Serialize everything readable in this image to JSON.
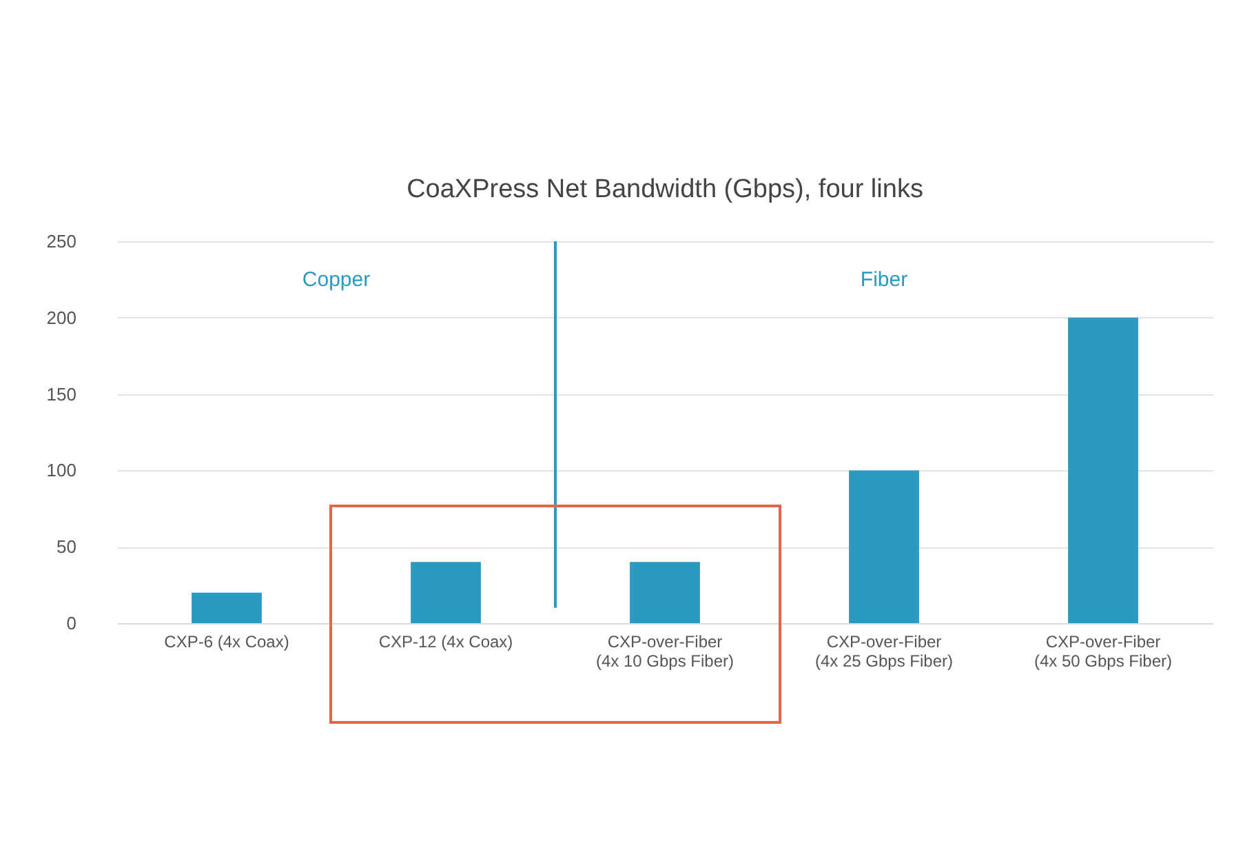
{
  "chart_data": {
    "type": "bar",
    "title": "CoaXPress Net Bandwidth (Gbps), four links",
    "categories": [
      "CXP-6 (4x Coax)",
      "CXP-12 (4x Coax)",
      "CXP-over-Fiber\n(4x 10 Gbps Fiber)",
      "CXP-over-Fiber\n(4x 25 Gbps Fiber)",
      "CXP-over-Fiber\n(4x 50 Gbps Fiber)"
    ],
    "values": [
      20,
      40,
      40,
      100,
      200
    ],
    "color": "#2a9ac2",
    "ylim": [
      0,
      250
    ],
    "yticks": [
      0,
      50,
      100,
      150,
      200,
      250
    ],
    "grid": "y",
    "annotations": [
      "Copper",
      "Fiber"
    ],
    "ref_lines": [
      {
        "axis": "x",
        "value": "CXP-over-Fiber\n(4x 10 Gbps Fiber)",
        "color": "#2a9ac2"
      }
    ]
  }
}
